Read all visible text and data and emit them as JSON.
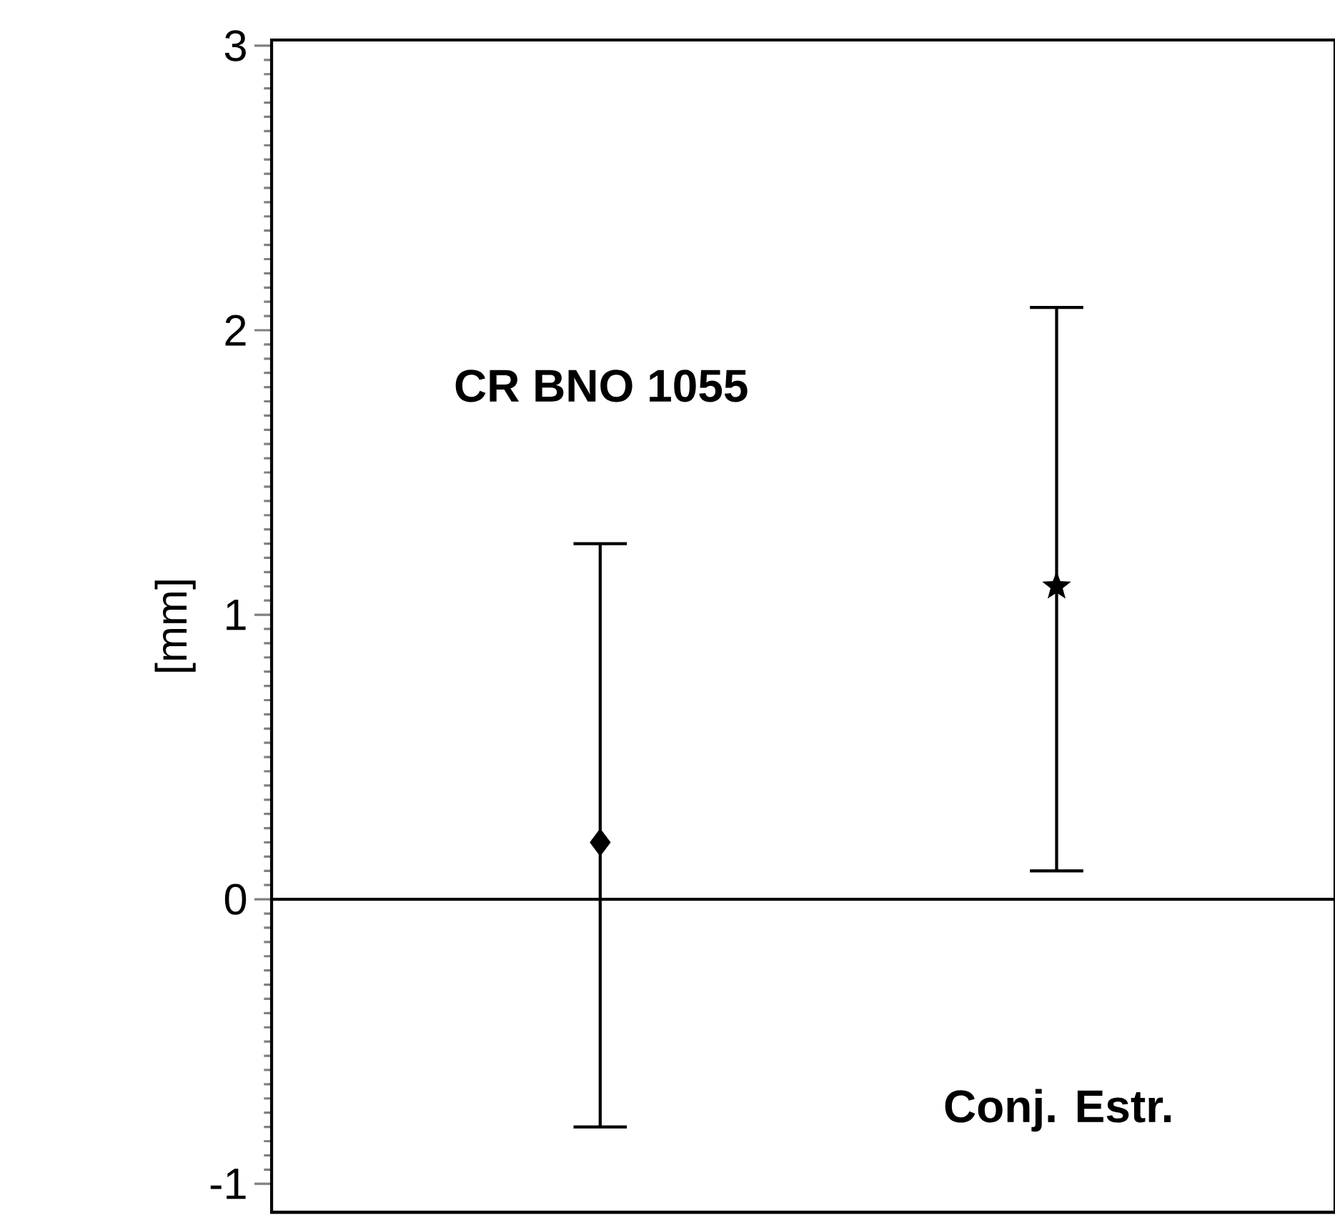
{
  "chart_data": {
    "type": "scatter",
    "ylabel": "[mm]",
    "categories": [
      null,
      null
    ],
    "series": [
      {
        "color": "#000000",
        "marker": "diamond",
        "values": [
          0.2,
          null
        ],
        "errors": [
          [
            -0.8,
            1.25
          ],
          null
        ]
      },
      {
        "color": "#000000",
        "marker": "star",
        "values": [
          null,
          1.1
        ],
        "errors": [
          null,
          [
            0.1,
            2.08
          ]
        ]
      }
    ],
    "ylim": [
      -1.1,
      3.02
    ],
    "yticks": [
      -1,
      0,
      1,
      2,
      3
    ],
    "ref_lines": [
      {
        "axis": "y",
        "value": 0,
        "color": "#000000"
      }
    ],
    "annotations": [
      "CR BNO 1055",
      "Conj. Estr."
    ]
  }
}
